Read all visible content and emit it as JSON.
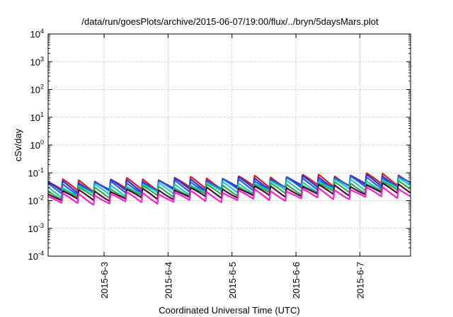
{
  "chart_data": {
    "type": "line",
    "title": "/data/run/goesPlots/archive/2015-06-07/19:00/flux/../bryn/5daysMars.plot",
    "xlabel": "Coordinated Universal Time (UTC)",
    "ylabel": "cSv/day",
    "y_scale": "log",
    "ylim": [
      0.0001,
      10000
    ],
    "xlim": [
      "2015-06-02 03:00",
      "2015-06-07 19:00"
    ],
    "x_tick_labels": [
      "2015-6-3",
      "2015-6-4",
      "2015-6-5",
      "2015-6-6",
      "2015-6-7"
    ],
    "y_ticks": [
      {
        "base": "10",
        "exp": "-4",
        "value": 0.0001
      },
      {
        "base": "10",
        "exp": "-3",
        "value": 0.001
      },
      {
        "base": "10",
        "exp": "-2",
        "value": 0.01
      },
      {
        "base": "10",
        "exp": "-1",
        "value": 0.1
      },
      {
        "base": "10",
        "exp": "0",
        "value": 1
      },
      {
        "base": "10",
        "exp": "1",
        "value": 10
      },
      {
        "base": "10",
        "exp": "2",
        "value": 100
      },
      {
        "base": "10",
        "exp": "3",
        "value": 1000
      },
      {
        "base": "10",
        "exp": "4",
        "value": 10000
      }
    ],
    "grid": true,
    "pattern": "periodic sawtooth, ~4 cycles per day; each cycle jumps to a peak then decays",
    "series": [
      {
        "color": "#e8151b",
        "start_peak": 0.052,
        "end_peak": 0.095,
        "trough_ratio": 0.42
      },
      {
        "color": "#2436d8",
        "start_peak": 0.046,
        "end_peak": 0.085,
        "trough_ratio": 0.43
      },
      {
        "color": "#2b5fd6",
        "start_peak": 0.04,
        "end_peak": 0.075,
        "trough_ratio": 0.44
      },
      {
        "color": "#22c9c6",
        "start_peak": 0.032,
        "end_peak": 0.06,
        "trough_ratio": 0.45
      },
      {
        "color": "#2ab04a",
        "start_peak": 0.026,
        "end_peak": 0.048,
        "trough_ratio": 0.46
      },
      {
        "color": "#4a0a3a",
        "start_peak": 0.021,
        "end_peak": 0.04,
        "trough_ratio": 0.46
      },
      {
        "color": "#ff1fd0",
        "start_peak": 0.016,
        "end_peak": 0.03,
        "trough_ratio": 0.45
      }
    ]
  }
}
